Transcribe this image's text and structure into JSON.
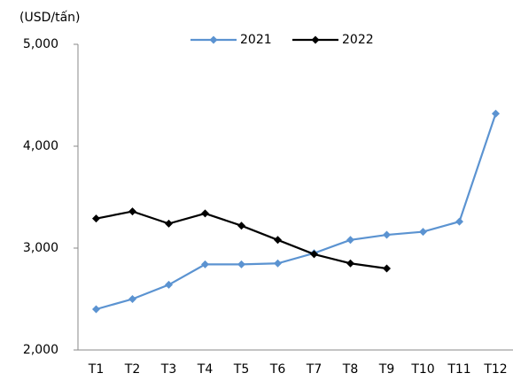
{
  "chart_data": {
    "type": "line",
    "ylabel": "(USD/tấn)",
    "categories": [
      "T1",
      "T2",
      "T3",
      "T4",
      "T5",
      "T6",
      "T7",
      "T8",
      "T9",
      "T10",
      "T11",
      "T12"
    ],
    "series": [
      {
        "name": "2021",
        "color": "#5b93d1",
        "values": [
          2400,
          2500,
          2640,
          2840,
          2840,
          2850,
          2950,
          3080,
          3130,
          3160,
          3260,
          4320
        ]
      },
      {
        "name": "2022",
        "color": "#000000",
        "values": [
          3290,
          3360,
          3240,
          3340,
          3220,
          3080,
          2940,
          2850,
          2800,
          null,
          null,
          null
        ]
      }
    ],
    "ylim": [
      2000,
      5000
    ],
    "yticks": [
      {
        "value": 2000,
        "label": "2,000"
      },
      {
        "value": 3000,
        "label": "3,000"
      },
      {
        "value": 4000,
        "label": "4,000"
      },
      {
        "value": 5000,
        "label": "5,000"
      }
    ],
    "grid": false,
    "legend": "top"
  }
}
